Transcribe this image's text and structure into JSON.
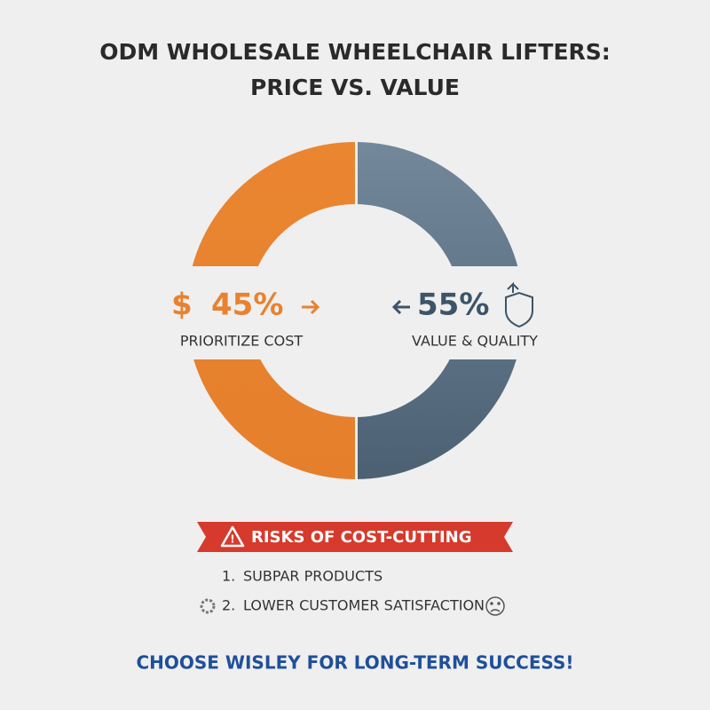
{
  "header": {
    "title_lines": [
      "ODM WHOLESALE WHEELCHAIR LIFTERS:",
      "PRICE VS. VALUE"
    ]
  },
  "left": {
    "symbol": "$",
    "value": "45%",
    "label": "PRIORITIZE COST"
  },
  "right": {
    "value": "55%",
    "label": "VALUE & QUALITY"
  },
  "risks": {
    "title": "RISKS OF COST-CUTTING",
    "items": [
      {
        "number": "1.",
        "text": "SUBPAR PRODUCTS"
      },
      {
        "number": "2.",
        "text": "LOWER CUSTOMER SATISFACTION"
      }
    ]
  },
  "footer": {
    "text": "CHOOSE WISLEY FOR LONG-TERM SUCCESS!"
  }
}
